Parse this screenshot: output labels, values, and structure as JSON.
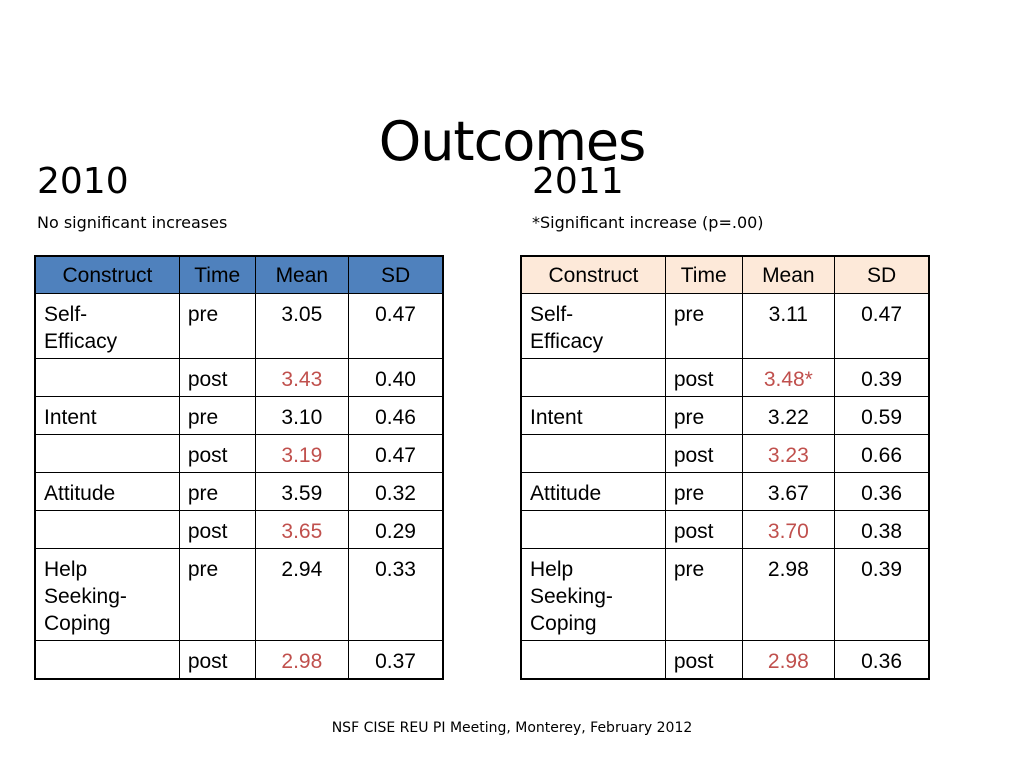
{
  "title": "Outcomes",
  "left": {
    "year": "2010",
    "note": "No significant increases",
    "headers": [
      "Construct",
      "Time",
      "Mean",
      "SD"
    ],
    "rows": [
      {
        "construct": "Self-\nEfficacy",
        "time": "pre",
        "mean": "3.05",
        "sd": "0.47",
        "highlight": false
      },
      {
        "construct": "",
        "time": "post",
        "mean": "3.43",
        "sd": "0.40",
        "highlight": true
      },
      {
        "construct": "Intent",
        "time": "pre",
        "mean": "3.10",
        "sd": "0.46",
        "highlight": false
      },
      {
        "construct": "",
        "time": "post",
        "mean": "3.19",
        "sd": "0.47",
        "highlight": true
      },
      {
        "construct": "Attitude",
        "time": "pre",
        "mean": "3.59",
        "sd": "0.32",
        "highlight": false
      },
      {
        "construct": "",
        "time": "post",
        "mean": "3.65",
        "sd": "0.29",
        "highlight": true
      },
      {
        "construct": "Help\nSeeking-\nCoping",
        "time": "pre",
        "mean": "2.94",
        "sd": "0.33",
        "highlight": false
      },
      {
        "construct": "",
        "time": "post",
        "mean": "2.98",
        "sd": "0.37",
        "highlight": true
      }
    ]
  },
  "right": {
    "year": "2011",
    "note": "*Significant increase (p=.00)",
    "headers": [
      "Construct",
      "Time",
      "Mean",
      "SD"
    ],
    "rows": [
      {
        "construct": "Self-\nEfficacy",
        "time": "pre",
        "mean": "3.11",
        "sd": "0.47",
        "highlight": false
      },
      {
        "construct": "",
        "time": "post",
        "mean": "3.48*",
        "sd": "0.39",
        "highlight": true
      },
      {
        "construct": "Intent",
        "time": "pre",
        "mean": "3.22",
        "sd": "0.59",
        "highlight": false
      },
      {
        "construct": "",
        "time": "post",
        "mean": "3.23",
        "sd": "0.66",
        "highlight": true
      },
      {
        "construct": "Attitude",
        "time": "pre",
        "mean": "3.67",
        "sd": "0.36",
        "highlight": false
      },
      {
        "construct": "",
        "time": "post",
        "mean": "3.70",
        "sd": "0.38",
        "highlight": true
      },
      {
        "construct": "Help\nSeeking-\nCoping",
        "time": "pre",
        "mean": "2.98",
        "sd": "0.39",
        "highlight": false
      },
      {
        "construct": "",
        "time": "post",
        "mean": "2.98",
        "sd": "0.36",
        "highlight": "light"
      }
    ]
  },
  "colors": {
    "left_header_bg": "#4f81bd",
    "right_header_bg": "#fde9d9",
    "highlight_text": "#c0504d"
  },
  "footer": "NSF CISE REU PI Meeting, Monterey, February 2012"
}
